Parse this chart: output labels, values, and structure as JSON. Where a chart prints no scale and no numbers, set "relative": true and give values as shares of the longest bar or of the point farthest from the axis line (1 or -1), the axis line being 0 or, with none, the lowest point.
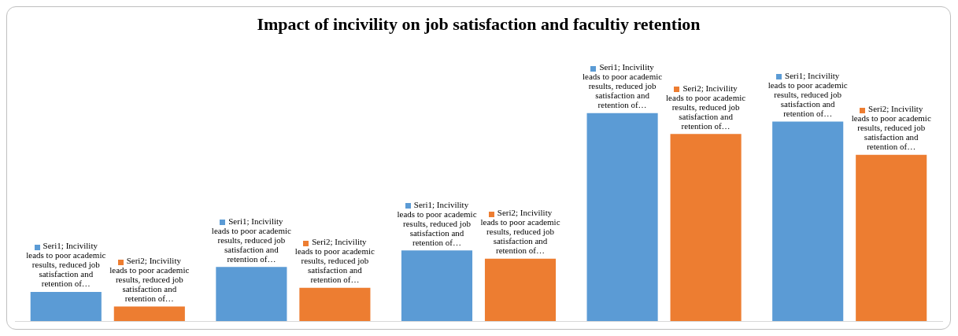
{
  "chart_data": {
    "type": "bar",
    "title": "Impact of incivility on job satisfaction and facultiy retention",
    "relative": true,
    "categories": [
      null,
      null,
      null,
      null,
      null
    ],
    "series": [
      {
        "color": "#5b9bd5",
        "values": [
          0.14,
          0.26,
          0.34,
          1,
          0.96
        ]
      },
      {
        "color": "#ed7d31",
        "values": [
          0.07,
          0.16,
          0.3,
          0.9,
          0.8
        ]
      }
    ],
    "annotations": [
      "Seri1; Incivility leads to poor academic results, reduced job satisfaction and retention of…",
      "Seri2; Incivility leads to poor academic results, reduced job satisfaction and retention of…",
      "Seri1; Incivility leads to poor academic results, reduced job satisfaction and retention of…",
      "Seri2; Incivility leads to poor academic results, reduced job satisfaction and retention of…",
      "Seri1; Incivility leads to poor academic results, reduced job satisfaction and retention of…",
      "Seri2; Incivility leads to poor academic results, reduced job satisfaction and retention of…",
      "Seri1; Incivility leads to poor academic results, reduced job satisfaction and retention of…",
      "Seri2; Incivility leads to poor academic results, reduced job satisfaction and retention of…",
      "Seri1; Incivility leads to poor academic results, reduced job satisfaction and retention of…",
      "Seri2; Incivility leads to poor academic results, reduced job satisfaction and retention of…"
    ]
  }
}
